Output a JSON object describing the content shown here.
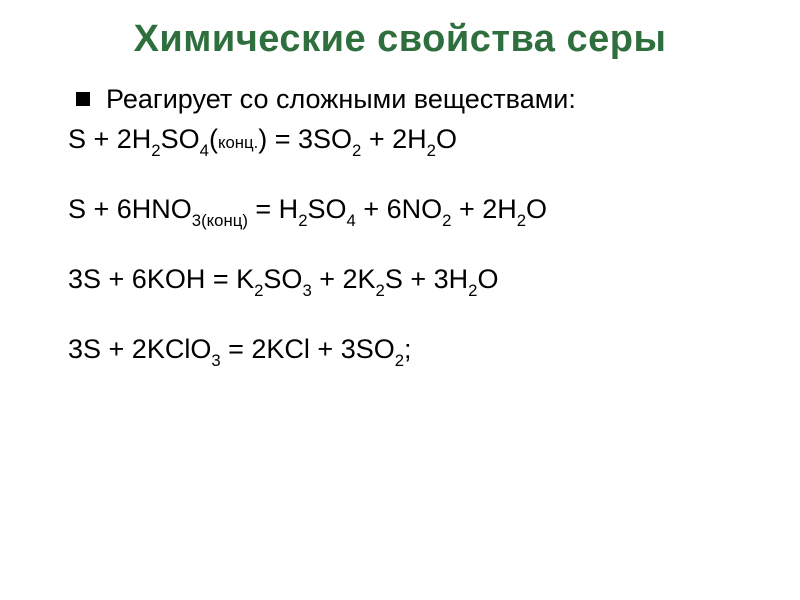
{
  "colors": {
    "title": "#2f6f3e",
    "body_text": "#000000",
    "background": "#ffffff",
    "bullet": "#000000"
  },
  "typography": {
    "title_fontsize_pt": 28,
    "title_weight": "bold",
    "body_fontsize_pt": 20,
    "sub_scale": 0.62,
    "font_family": "Arial"
  },
  "title": "Химические свойства серы",
  "bullet_text": "Реагирует со сложными веществами:",
  "equations": [
    {
      "tokens": [
        {
          "t": "S + "
        },
        {
          "t": "   "
        },
        {
          "t": "2H"
        },
        {
          "t": "2",
          "sub": true
        },
        {
          "t": "SO"
        },
        {
          "t": "4",
          "sub": true
        },
        {
          "t": "("
        },
        {
          "t": "конц.",
          "small": true
        },
        {
          "t": ") = 3SO"
        },
        {
          "t": "2",
          "sub": true
        },
        {
          "t": "   + 2H"
        },
        {
          "t": "2",
          "sub": true
        },
        {
          "t": "O"
        }
      ]
    },
    {
      "tokens": [
        {
          "t": "S + "
        },
        {
          "t": "  "
        },
        {
          "t": "6HNO"
        },
        {
          "t": "3(конц)",
          "sub": true
        },
        {
          "t": " = H"
        },
        {
          "t": "2",
          "sub": true
        },
        {
          "t": "SO"
        },
        {
          "t": "4",
          "sub": true
        },
        {
          "t": "   + 6NO"
        },
        {
          "t": "2",
          "sub": true
        },
        {
          "t": " + 2H"
        },
        {
          "t": "2",
          "sub": true
        },
        {
          "t": "O"
        }
      ]
    },
    {
      "tokens": [
        {
          "t": "3S + "
        },
        {
          "t": "   "
        },
        {
          "t": "6KOH  =  K"
        },
        {
          "t": "2",
          "sub": true
        },
        {
          "t": "SO"
        },
        {
          "t": "3",
          "sub": true
        },
        {
          "t": "   +  2K"
        },
        {
          "t": "2",
          "sub": true
        },
        {
          "t": "S +  3H"
        },
        {
          "t": "2",
          "sub": true
        },
        {
          "t": "O"
        }
      ]
    },
    {
      "tokens": [
        {
          "t": "3S"
        },
        {
          "t": "   + 2KClO"
        },
        {
          "t": "3",
          "sub": true
        },
        {
          "t": "  =  2KCl  + 3SO"
        },
        {
          "t": "2",
          "sub": true
        },
        {
          "t": ";"
        }
      ]
    }
  ]
}
